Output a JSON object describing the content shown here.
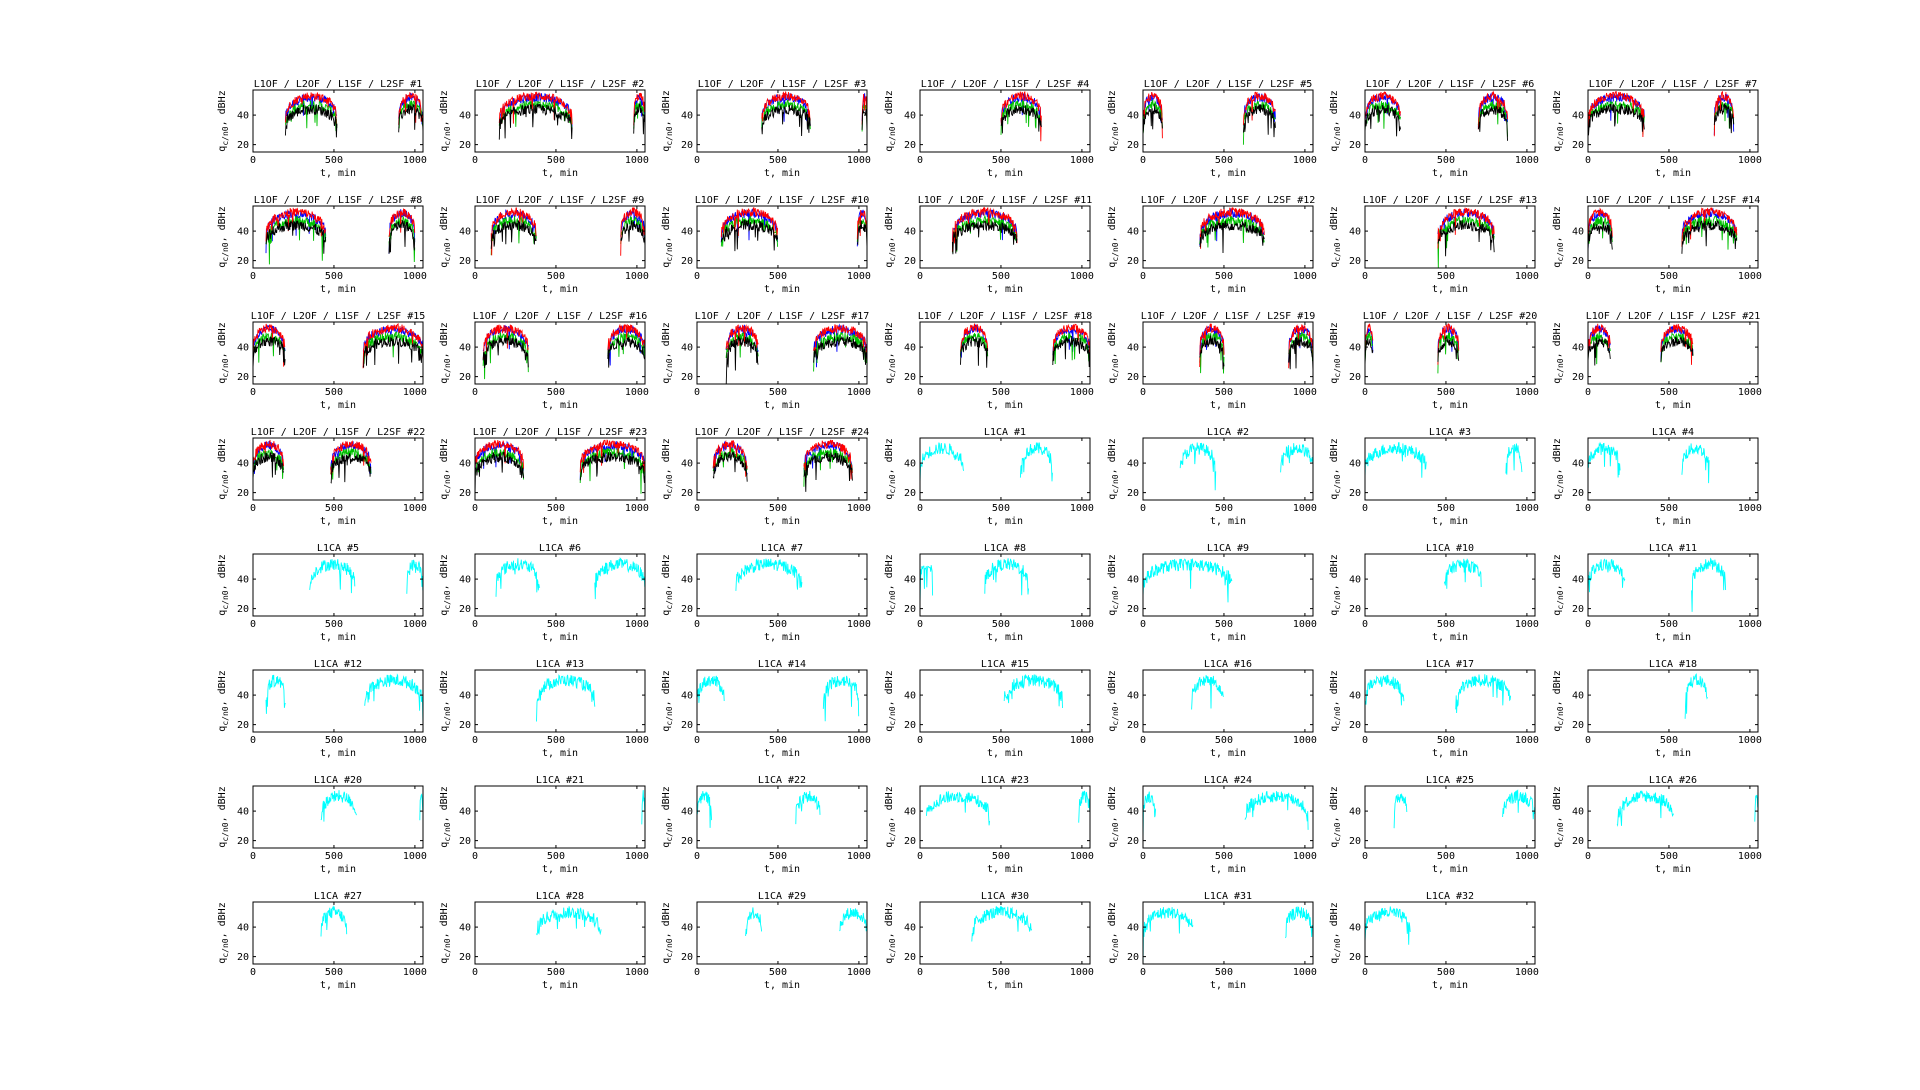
{
  "figure": {
    "plot_bg": "#ffffff",
    "axis_color": "#000000",
    "series_colors": {
      "L1OF": "#0000ff",
      "L2OF": "#ff0000",
      "L1SF": "#00c000",
      "L2SF": "#000000",
      "L1CA": "#00ffff"
    }
  },
  "chart_data": {
    "type": "line",
    "grid": false,
    "xlabel": "t, min",
    "ylabel": "q",
    "ylabel_sub": "c/n0",
    "ylabel_unit": ", dBHz",
    "xlim": [
      0,
      1050
    ],
    "ylim": [
      15,
      57
    ],
    "xticks": [
      0,
      500,
      1000
    ],
    "yticks": [
      20,
      40
    ],
    "panels": [
      {
        "title": "L1OF / L2OF / L1SF / L2SF #1",
        "kind": "fdma",
        "visibility": [
          [
            200,
            520
          ],
          [
            900,
            1050
          ]
        ]
      },
      {
        "title": "L1OF / L2OF / L1SF / L2SF #2",
        "kind": "fdma",
        "visibility": [
          [
            150,
            600
          ],
          [
            980,
            1050
          ]
        ]
      },
      {
        "title": "L1OF / L2OF / L1SF / L2SF #3",
        "kind": "fdma",
        "visibility": [
          [
            400,
            700
          ],
          [
            1020,
            1050
          ]
        ]
      },
      {
        "title": "L1OF / L2OF / L1SF / L2SF #4",
        "kind": "fdma",
        "visibility": [
          [
            500,
            750
          ]
        ]
      },
      {
        "title": "L1OF / L2OF / L1SF / L2SF #5",
        "kind": "fdma",
        "visibility": [
          [
            0,
            120
          ],
          [
            620,
            820
          ]
        ]
      },
      {
        "title": "L1OF / L2OF / L1SF / L2SF #6",
        "kind": "fdma",
        "visibility": [
          [
            0,
            220
          ],
          [
            700,
            880
          ]
        ]
      },
      {
        "title": "L1OF / L2OF / L1SF / L2SF #7",
        "kind": "fdma",
        "visibility": [
          [
            0,
            350
          ],
          [
            780,
            900
          ]
        ]
      },
      {
        "title": "L1OF / L2OF / L1SF / L2SF #8",
        "kind": "fdma",
        "visibility": [
          [
            80,
            450
          ],
          [
            840,
            1000
          ]
        ]
      },
      {
        "title": "L1OF / L2OF / L1SF / L2SF #9",
        "kind": "fdma",
        "visibility": [
          [
            100,
            380
          ],
          [
            900,
            1050
          ]
        ]
      },
      {
        "title": "L1OF / L2OF / L1SF / L2SF #10",
        "kind": "fdma",
        "visibility": [
          [
            150,
            500
          ],
          [
            990,
            1050
          ]
        ]
      },
      {
        "title": "L1OF / L2OF / L1SF / L2SF #11",
        "kind": "fdma",
        "visibility": [
          [
            200,
            600
          ]
        ]
      },
      {
        "title": "L1OF / L2OF / L1SF / L2SF #12",
        "kind": "fdma",
        "visibility": [
          [
            350,
            750
          ]
        ]
      },
      {
        "title": "L1OF / L2OF / L1SF / L2SF #13",
        "kind": "fdma",
        "visibility": [
          [
            450,
            800
          ]
        ]
      },
      {
        "title": "L1OF / L2OF / L1SF / L2SF #14",
        "kind": "fdma",
        "visibility": [
          [
            0,
            150
          ],
          [
            580,
            920
          ]
        ]
      },
      {
        "title": "L1OF / L2OF / L1SF / L2SF #15",
        "kind": "fdma",
        "visibility": [
          [
            0,
            200
          ],
          [
            680,
            1050
          ]
        ]
      },
      {
        "title": "L1OF / L2OF / L1SF / L2SF #16",
        "kind": "fdma",
        "visibility": [
          [
            50,
            330
          ],
          [
            820,
            1050
          ]
        ]
      },
      {
        "title": "L1OF / L2OF / L1SF / L2SF #17",
        "kind": "fdma",
        "visibility": [
          [
            180,
            380
          ],
          [
            720,
            1050
          ]
        ]
      },
      {
        "title": "L1OF / L2OF / L1SF / L2SF #18",
        "kind": "fdma",
        "visibility": [
          [
            250,
            420
          ],
          [
            820,
            1050
          ]
        ]
      },
      {
        "title": "L1OF / L2OF / L1SF / L2SF #19",
        "kind": "fdma",
        "visibility": [
          [
            350,
            500
          ],
          [
            900,
            1050
          ]
        ]
      },
      {
        "title": "L1OF / L2OF / L1SF / L2SF #20",
        "kind": "fdma",
        "visibility": [
          [
            0,
            50
          ],
          [
            450,
            580
          ]
        ]
      },
      {
        "title": "L1OF / L2OF / L1SF / L2SF #21",
        "kind": "fdma",
        "visibility": [
          [
            0,
            140
          ],
          [
            450,
            650
          ]
        ]
      },
      {
        "title": "L1OF / L2OF / L1SF / L2SF #22",
        "kind": "fdma",
        "visibility": [
          [
            0,
            190
          ],
          [
            480,
            730
          ]
        ]
      },
      {
        "title": "L1OF / L2OF / L1SF / L2SF #23",
        "kind": "fdma",
        "visibility": [
          [
            0,
            300
          ],
          [
            650,
            1050
          ]
        ]
      },
      {
        "title": "L1OF / L2OF / L1SF / L2SF #24",
        "kind": "fdma",
        "visibility": [
          [
            100,
            310
          ],
          [
            660,
            960
          ]
        ]
      },
      {
        "title": "L1CA #1",
        "kind": "ca",
        "visibility": [
          [
            0,
            270
          ],
          [
            620,
            820
          ]
        ]
      },
      {
        "title": "L1CA #2",
        "kind": "ca",
        "visibility": [
          [
            230,
            450
          ],
          [
            850,
            1050
          ]
        ]
      },
      {
        "title": "L1CA #3",
        "kind": "ca",
        "visibility": [
          [
            0,
            380
          ],
          [
            870,
            970
          ]
        ]
      },
      {
        "title": "L1CA #4",
        "kind": "ca",
        "visibility": [
          [
            0,
            200
          ],
          [
            580,
            750
          ]
        ]
      },
      {
        "title": "L1CA #5",
        "kind": "ca",
        "visibility": [
          [
            350,
            630
          ],
          [
            950,
            1050
          ]
        ]
      },
      {
        "title": "L1CA #6",
        "kind": "ca",
        "visibility": [
          [
            130,
            400
          ],
          [
            740,
            1050
          ]
        ]
      },
      {
        "title": "L1CA #7",
        "kind": "ca",
        "visibility": [
          [
            240,
            650
          ]
        ]
      },
      {
        "title": "L1CA #8",
        "kind": "ca",
        "visibility": [
          [
            0,
            80
          ],
          [
            400,
            670
          ]
        ]
      },
      {
        "title": "L1CA #9",
        "kind": "ca",
        "visibility": [
          [
            0,
            550
          ]
        ]
      },
      {
        "title": "L1CA #10",
        "kind": "ca",
        "visibility": [
          [
            490,
            720
          ]
        ]
      },
      {
        "title": "L1CA #11",
        "kind": "ca",
        "visibility": [
          [
            0,
            230
          ],
          [
            640,
            850
          ]
        ]
      },
      {
        "title": "L1CA #12",
        "kind": "ca",
        "visibility": [
          [
            80,
            200
          ],
          [
            690,
            1050
          ]
        ]
      },
      {
        "title": "L1CA #13",
        "kind": "ca",
        "visibility": [
          [
            380,
            740
          ]
        ]
      },
      {
        "title": "L1CA #14",
        "kind": "ca",
        "visibility": [
          [
            0,
            170
          ],
          [
            780,
            1000
          ]
        ]
      },
      {
        "title": "L1CA #15",
        "kind": "ca",
        "visibility": [
          [
            520,
            880
          ]
        ]
      },
      {
        "title": "L1CA #16",
        "kind": "ca",
        "visibility": [
          [
            300,
            500
          ]
        ]
      },
      {
        "title": "L1CA #17",
        "kind": "ca",
        "visibility": [
          [
            0,
            240
          ],
          [
            560,
            900
          ]
        ]
      },
      {
        "title": "L1CA #18",
        "kind": "ca",
        "visibility": [
          [
            600,
            740
          ]
        ]
      },
      {
        "title": "L1CA #20",
        "kind": "ca",
        "visibility": [
          [
            420,
            640
          ],
          [
            1030,
            1050
          ]
        ]
      },
      {
        "title": "L1CA #21",
        "kind": "ca",
        "visibility": [
          [
            1030,
            1050
          ]
        ]
      },
      {
        "title": "L1CA #22",
        "kind": "ca",
        "visibility": [
          [
            0,
            90
          ],
          [
            610,
            760
          ]
        ]
      },
      {
        "title": "L1CA #23",
        "kind": "ca",
        "visibility": [
          [
            40,
            430
          ],
          [
            980,
            1050
          ]
        ]
      },
      {
        "title": "L1CA #24",
        "kind": "ca",
        "visibility": [
          [
            0,
            80
          ],
          [
            630,
            1020
          ]
        ]
      },
      {
        "title": "L1CA #25",
        "kind": "ca",
        "visibility": [
          [
            180,
            260
          ],
          [
            850,
            1050
          ]
        ]
      },
      {
        "title": "L1CA #26",
        "kind": "ca",
        "visibility": [
          [
            180,
            530
          ],
          [
            1030,
            1050
          ]
        ]
      },
      {
        "title": "L1CA #27",
        "kind": "ca",
        "visibility": [
          [
            420,
            580
          ]
        ]
      },
      {
        "title": "L1CA #28",
        "kind": "ca",
        "visibility": [
          [
            380,
            780
          ]
        ]
      },
      {
        "title": "L1CA #29",
        "kind": "ca",
        "visibility": [
          [
            300,
            400
          ],
          [
            880,
            1050
          ]
        ]
      },
      {
        "title": "L1CA #30",
        "kind": "ca",
        "visibility": [
          [
            320,
            690
          ]
        ]
      },
      {
        "title": "L1CA #31",
        "kind": "ca",
        "visibility": [
          [
            0,
            310
          ],
          [
            880,
            1050
          ]
        ]
      },
      {
        "title": "L1CA #32",
        "kind": "ca",
        "visibility": [
          [
            0,
            280
          ]
        ]
      }
    ]
  }
}
